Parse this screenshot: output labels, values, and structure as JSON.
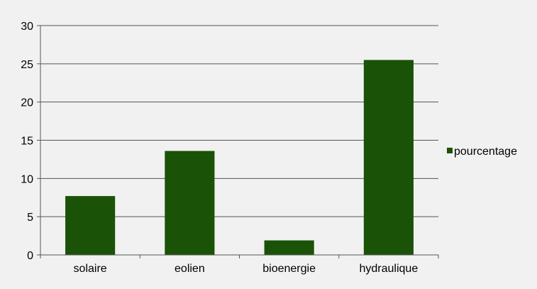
{
  "chart_data": {
    "type": "bar",
    "categories": [
      "solaire",
      "eolien",
      "bioenergie",
      "hydraulique"
    ],
    "series": [
      {
        "name": "pourcentage",
        "values": [
          7.7,
          13.6,
          1.9,
          25.5
        ]
      }
    ],
    "ylim": [
      0,
      30
    ],
    "yticks": [
      0,
      5,
      10,
      15,
      20,
      25,
      30
    ],
    "grid": true,
    "legend_position": "right",
    "colors": {
      "bar": "#1a5207",
      "grid": "#555555",
      "axis": "#555555",
      "background": "#f1f1f1"
    }
  }
}
